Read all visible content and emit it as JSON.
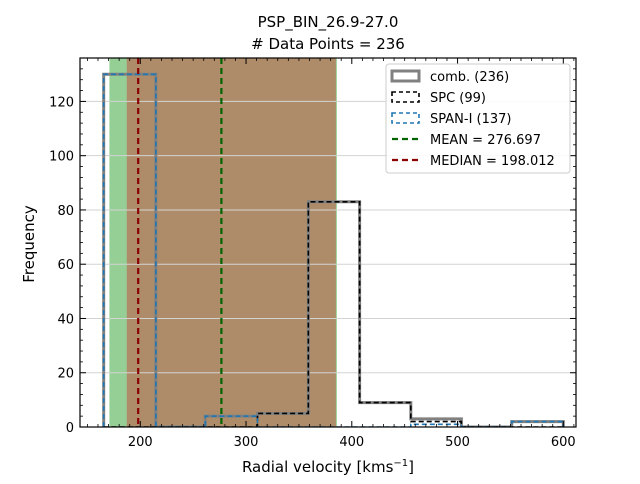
{
  "chart_data": {
    "type": "histogram",
    "title_line1": "PSP_BIN_26.9-27.0",
    "title_line2": "# Data Points = 236",
    "xlabel": "Radial velocity [kms",
    "xlabel_sup": "−1",
    "xlabel_end": "]",
    "ylabel": "Frequency",
    "xlim": [
      143,
      612
    ],
    "ylim": [
      0,
      136
    ],
    "x_ticks": [
      200,
      300,
      400,
      500,
      600
    ],
    "y_ticks": [
      0,
      20,
      40,
      60,
      80,
      100,
      120
    ],
    "grid": "horizontal",
    "legend_position": "top-right",
    "bin_edges": [
      165.4,
      214.7,
      261.5,
      310.8,
      358.9,
      407.4,
      455.8,
      503.6,
      551.2,
      600.0
    ],
    "series": [
      {
        "name": "comb. (236)",
        "color": "#808080",
        "style": "solid",
        "counts": [
          130,
          0,
          4,
          5,
          83,
          9,
          3,
          0,
          2
        ]
      },
      {
        "name": "SPC (99)",
        "color": "#000000",
        "style": "dashed",
        "counts": [
          0,
          0,
          0,
          5,
          83,
          9,
          2,
          0,
          0
        ]
      },
      {
        "name": "SPAN-I (137)",
        "color": "#1f77b4",
        "style": "dashed",
        "counts": [
          130,
          0,
          4,
          0,
          0,
          0,
          1,
          0,
          2
        ]
      }
    ],
    "lines": [
      {
        "name": "MEAN = 276.697",
        "value": 276.697,
        "color": "#006400"
      },
      {
        "name": "MEDIAN = 198.012",
        "value": 198.012,
        "color": "#8b0000"
      }
    ],
    "shaded_spans": [
      {
        "from": 170.8,
        "to": 385.9,
        "color": "#2ca02c",
        "opacity": 0.5
      },
      {
        "from": 187.2,
        "to": 385.0,
        "color": "#d62728",
        "opacity": 0.4
      }
    ]
  }
}
